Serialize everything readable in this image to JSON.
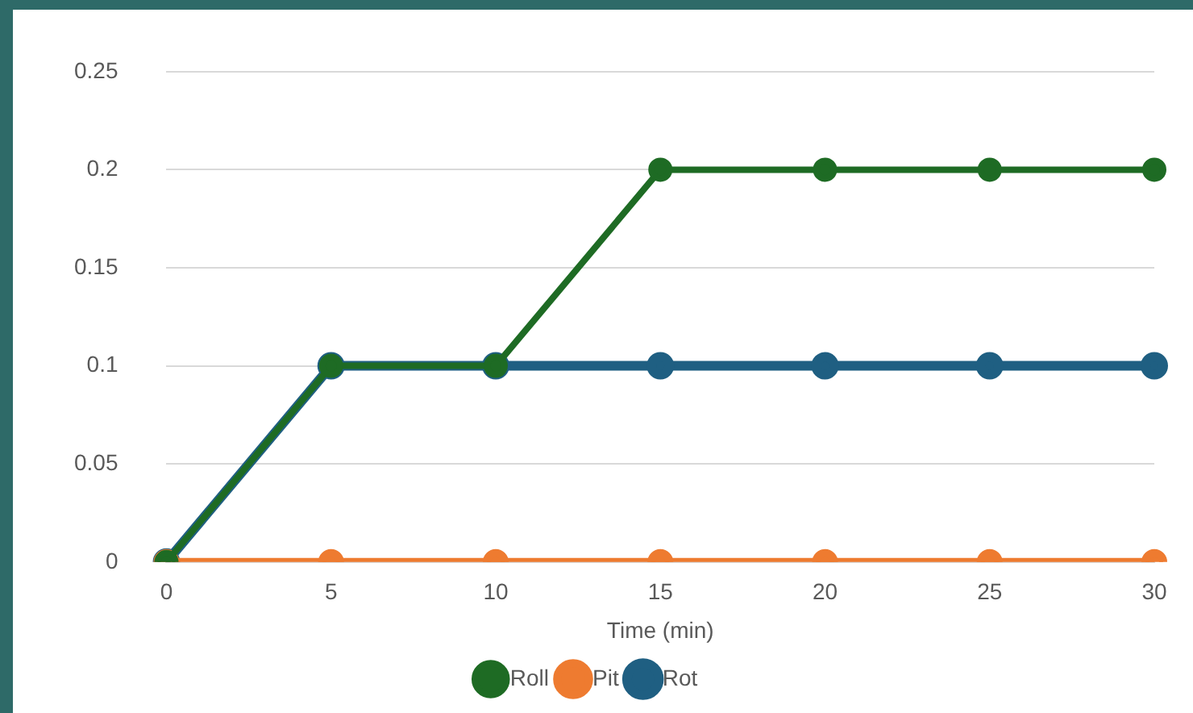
{
  "chart_data": {
    "type": "line",
    "xlabel": "Time (min)",
    "categories": [
      "0",
      "5",
      "10",
      "15",
      "20",
      "25",
      "30"
    ],
    "series": [
      {
        "name": "Rot",
        "color": "#1f5f82",
        "values": [
          0,
          0.1,
          0.1,
          0.1,
          0.1,
          0.1,
          0.1
        ]
      },
      {
        "name": "Pit",
        "color": "#ee7b30",
        "values": [
          0,
          0,
          0,
          0,
          0,
          0,
          0
        ]
      },
      {
        "name": "Roll",
        "color": "#1e6b24",
        "values": [
          0,
          0.1,
          0.1,
          0.2,
          0.2,
          0.2,
          0.2
        ]
      }
    ],
    "ylim": [
      0,
      0.25
    ],
    "yticks": [
      0,
      0.05,
      0.1,
      0.15,
      0.2,
      0.25
    ],
    "grid": "y",
    "legend": "bottom",
    "marker": "circle",
    "line_style": "solid"
  }
}
